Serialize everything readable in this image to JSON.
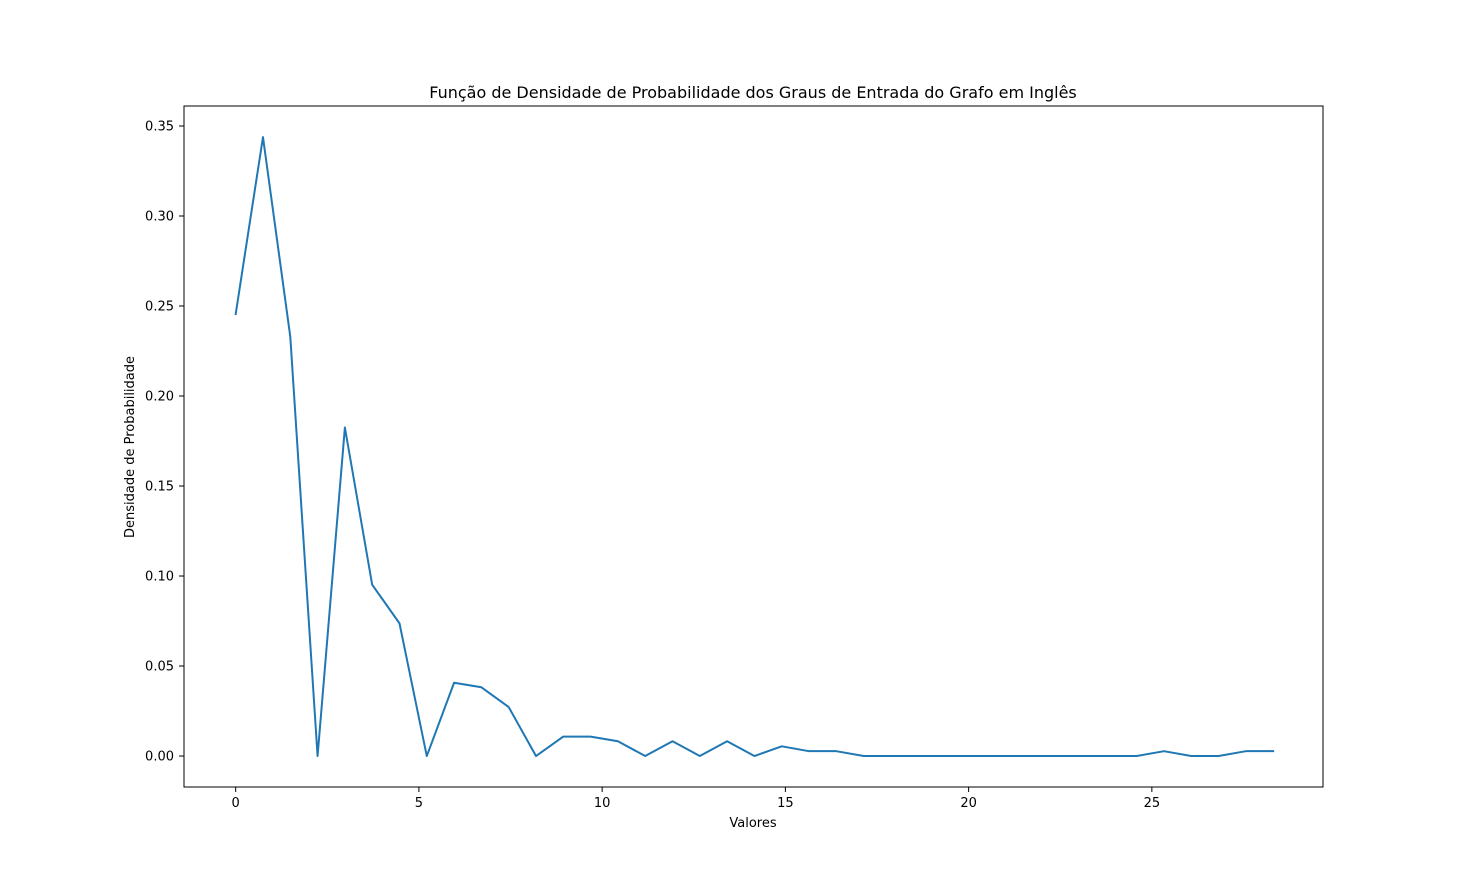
{
  "chart_data": {
    "type": "line",
    "title": "Função de Densidade de Probabilidade dos Graus de Entrada do Grafo em Inglês",
    "xlabel": "Valores",
    "ylabel": "Densidade de Probabilidade",
    "xlim": [
      -1.41,
      29.67
    ],
    "ylim": [
      -0.0172,
      0.3611
    ],
    "xticks": [
      0,
      5,
      10,
      15,
      20,
      25
    ],
    "xtick_labels": [
      "0",
      "5",
      "10",
      "15",
      "20",
      "25"
    ],
    "yticks": [
      0.0,
      0.05,
      0.1,
      0.15,
      0.2,
      0.25,
      0.3,
      0.35
    ],
    "ytick_labels": [
      "0.00",
      "0.05",
      "0.10",
      "0.15",
      "0.20",
      "0.25",
      "0.30",
      "0.35"
    ],
    "grid": false,
    "color": "#1f77b4",
    "series": [
      {
        "x": [
          0,
          0.745,
          1.49,
          2.235,
          2.98,
          3.725,
          4.47,
          5.215,
          5.96,
          6.705,
          7.45,
          8.195,
          8.94,
          9.685,
          10.43,
          11.175,
          11.92,
          12.665,
          13.41,
          14.155,
          14.9,
          15.645,
          16.39,
          17.135,
          17.88,
          18.625,
          19.37,
          20.115,
          20.86,
          21.605,
          22.35,
          23.095,
          23.84,
          24.585,
          25.33,
          26.075,
          26.82,
          27.565,
          28.31
        ],
        "y": [
          0.2455,
          0.3438,
          0.233,
          0.0,
          0.1825,
          0.0952,
          0.0737,
          0.0,
          0.0407,
          0.0382,
          0.0272,
          0.0,
          0.0108,
          0.0108,
          0.0082,
          0.0,
          0.0082,
          0.0,
          0.0082,
          0.0,
          0.0054,
          0.0027,
          0.0027,
          0.0,
          0.0,
          0.0,
          0.0,
          0.0,
          0.0,
          0.0,
          0.0,
          0.0,
          0.0,
          0.0,
          0.0027,
          0.0,
          0.0,
          0.0027,
          0.0027
        ]
      }
    ]
  }
}
